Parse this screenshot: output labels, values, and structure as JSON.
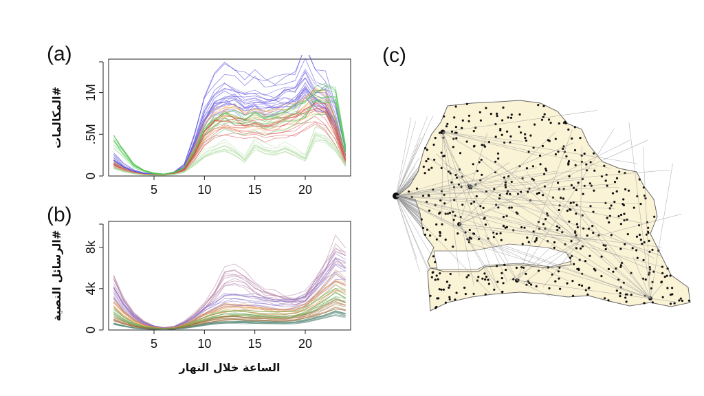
{
  "panels": {
    "a_label": "(a)",
    "b_label": "(b)",
    "c_label": "(c)"
  },
  "chart_data": [
    {
      "id": "a",
      "type": "line",
      "title": "",
      "xlabel": "",
      "ylabel": "#المكالمات",
      "xlim": [
        0.5,
        24.5
      ],
      "ylim": [
        0,
        1400000
      ],
      "xticks": [
        5,
        10,
        15,
        20
      ],
      "xtick_labels": [
        "5",
        "10",
        "15",
        "20"
      ],
      "yticks": [
        0,
        500000,
        1000000
      ],
      "ytick_labels": [
        "0",
        ".5M",
        "1M"
      ],
      "x": [
        1,
        2,
        3,
        4,
        5,
        6,
        7,
        8,
        9,
        10,
        11,
        12,
        13,
        14,
        15,
        16,
        17,
        18,
        19,
        20,
        21,
        22,
        23,
        24
      ],
      "series": [
        {
          "name": "blue-upper",
          "color": "#4a3fd9",
          "values": [
            220000,
            120000,
            60000,
            30000,
            20000,
            20000,
            40000,
            120000,
            420000,
            800000,
            1000000,
            1100000,
            1080000,
            980000,
            1030000,
            960000,
            980000,
            1020000,
            1060000,
            1230000,
            1060000,
            1000000,
            700000,
            260000
          ]
        },
        {
          "name": "blue-mid",
          "color": "#6a5ae8",
          "values": [
            160000,
            90000,
            45000,
            25000,
            18000,
            18000,
            35000,
            100000,
            360000,
            700000,
            880000,
            950000,
            930000,
            850000,
            900000,
            850000,
            870000,
            900000,
            940000,
            1080000,
            920000,
            880000,
            620000,
            230000
          ]
        },
        {
          "name": "orange",
          "color": "#e8a04a",
          "values": [
            150000,
            80000,
            40000,
            20000,
            15000,
            15000,
            30000,
            90000,
            300000,
            560000,
            700000,
            760000,
            740000,
            690000,
            720000,
            680000,
            700000,
            730000,
            760000,
            860000,
            960000,
            900000,
            600000,
            200000
          ]
        },
        {
          "name": "green",
          "color": "#49c24a",
          "values": [
            400000,
            260000,
            120000,
            60000,
            30000,
            20000,
            40000,
            80000,
            260000,
            480000,
            600000,
            660000,
            640000,
            600000,
            630000,
            600000,
            620000,
            650000,
            700000,
            720000,
            880000,
            920000,
            860000,
            300000
          ]
        },
        {
          "name": "red",
          "color": "#d9484a",
          "values": [
            120000,
            70000,
            35000,
            18000,
            12000,
            12000,
            25000,
            70000,
            240000,
            460000,
            580000,
            620000,
            600000,
            560000,
            580000,
            550000,
            560000,
            590000,
            620000,
            700000,
            760000,
            700000,
            480000,
            160000
          ]
        },
        {
          "name": "pale-green",
          "color": "#b5dfa8",
          "values": [
            100000,
            60000,
            30000,
            15000,
            10000,
            10000,
            20000,
            50000,
            150000,
            260000,
            320000,
            360000,
            300000,
            200000,
            380000,
            320000,
            300000,
            340000,
            280000,
            220000,
            520000,
            480000,
            360000,
            140000
          ]
        }
      ]
    },
    {
      "id": "b",
      "type": "line",
      "title": "",
      "xlabel": "الساعة خلال النهار",
      "ylabel": "#الرسائل النصية",
      "xlim": [
        0.5,
        24.5
      ],
      "ylim": [
        0,
        10500
      ],
      "xticks": [
        5,
        10,
        15,
        20
      ],
      "xtick_labels": [
        "5",
        "10",
        "15",
        "20"
      ],
      "yticks": [
        0,
        4000,
        8000
      ],
      "ytick_labels": [
        "0",
        "4k",
        "8k"
      ],
      "x": [
        1,
        2,
        3,
        4,
        5,
        6,
        7,
        8,
        9,
        10,
        11,
        12,
        13,
        14,
        15,
        16,
        17,
        18,
        19,
        20,
        21,
        22,
        23,
        24
      ],
      "series": [
        {
          "name": "mauve-peak",
          "color": "#b07aa0",
          "values": [
            4500,
            2600,
            1400,
            700,
            350,
            200,
            300,
            700,
            1300,
            2200,
            3300,
            4800,
            5000,
            4600,
            3800,
            3200,
            3000,
            2800,
            2700,
            3000,
            4200,
            5600,
            7200,
            6600
          ]
        },
        {
          "name": "purple-high",
          "color": "#8a6fc8",
          "values": [
            3600,
            2200,
            1200,
            600,
            300,
            180,
            260,
            600,
            1100,
            1800,
            2400,
            2900,
            3000,
            2900,
            2800,
            2600,
            2500,
            2400,
            2500,
            2900,
            3800,
            4800,
            6100,
            5600
          ]
        },
        {
          "name": "orange-mid",
          "color": "#e0924a",
          "values": [
            2600,
            1600,
            900,
            450,
            250,
            150,
            220,
            500,
            900,
            1400,
            1800,
            2100,
            2200,
            2100,
            2000,
            1900,
            1850,
            1800,
            1900,
            2300,
            3000,
            3800,
            4800,
            4300
          ]
        },
        {
          "name": "green-mid",
          "color": "#6aa84f",
          "values": [
            1800,
            1100,
            600,
            300,
            180,
            110,
            160,
            380,
            700,
            1100,
            1400,
            1600,
            1650,
            1600,
            1550,
            1500,
            1450,
            1450,
            1550,
            1850,
            2400,
            3000,
            3700,
            3300
          ]
        },
        {
          "name": "brown-low",
          "color": "#a0703a",
          "values": [
            1100,
            700,
            380,
            200,
            120,
            80,
            120,
            280,
            520,
            800,
            1000,
            1150,
            1200,
            1150,
            1100,
            1080,
            1050,
            1050,
            1120,
            1350,
            1700,
            2100,
            2600,
            2300
          ]
        },
        {
          "name": "teal-low",
          "color": "#5a8a7a",
          "values": [
            600,
            380,
            200,
            110,
            70,
            50,
            80,
            180,
            340,
            520,
            650,
            740,
            770,
            740,
            720,
            700,
            690,
            690,
            730,
            880,
            1100,
            1350,
            1650,
            1450
          ]
        }
      ]
    },
    {
      "id": "c",
      "type": "map",
      "title": "",
      "description_colors": {
        "land": "#fbf3d6",
        "border": "#666666",
        "node": "#111111",
        "edge": "#9a9a9a"
      }
    }
  ]
}
